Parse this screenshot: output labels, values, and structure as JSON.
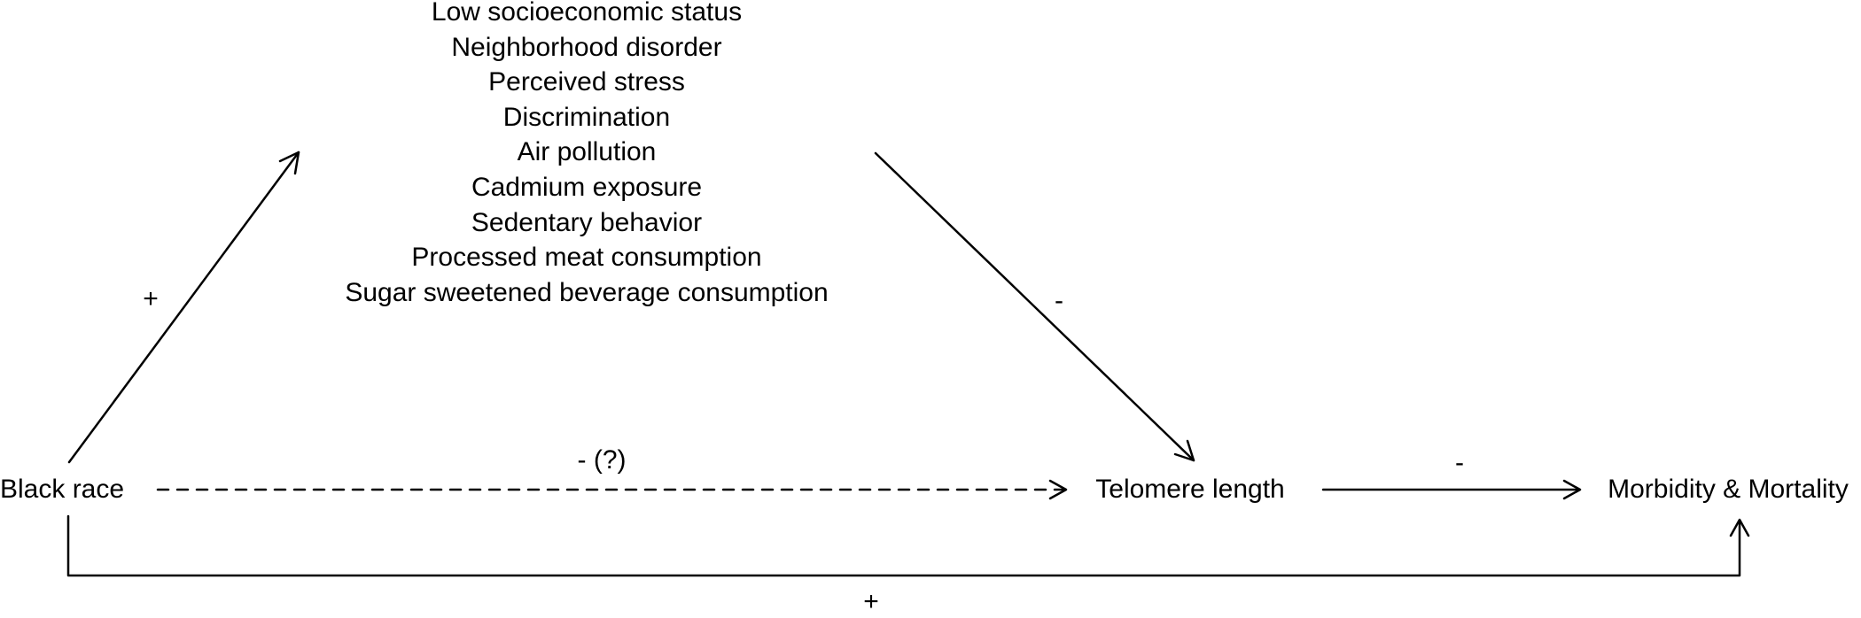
{
  "nodes": {
    "exposure": "Black race",
    "mediator": "Telomere length",
    "outcome": "Morbidity & Mortality"
  },
  "mediators": [
    "Low socioeconomic status",
    "Neighborhood disorder",
    "Perceived stress",
    "Discrimination",
    "Air pollution",
    "Cadmium exposure",
    "Sedentary behavior",
    "Processed meat consumption",
    "Sugar sweetened beverage consumption"
  ],
  "edge_labels": {
    "race_to_factors": "+",
    "factors_to_telomere": "-",
    "race_to_telomere": "- (?)",
    "telomere_to_outcome": "-",
    "race_to_outcome": "+"
  },
  "edges": [
    {
      "from": "Black race",
      "to": "Factors",
      "style": "solid",
      "sign": "+"
    },
    {
      "from": "Factors",
      "to": "Telomere length",
      "style": "solid",
      "sign": "-"
    },
    {
      "from": "Black race",
      "to": "Telomere length",
      "style": "dashed",
      "sign": "- (?)"
    },
    {
      "from": "Telomere length",
      "to": "Morbidity & Mortality",
      "style": "solid",
      "sign": "-"
    },
    {
      "from": "Black race",
      "to": "Morbidity & Mortality",
      "style": "solid",
      "sign": "+"
    }
  ]
}
